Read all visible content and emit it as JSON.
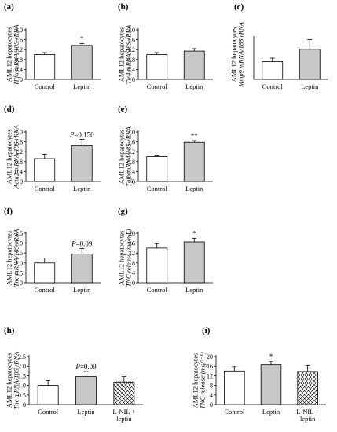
{
  "colors": {
    "control_fill": "#ffffff",
    "treated_fill": "#c8c8c8",
    "lnil_fill": "hatched",
    "stroke": "#000000"
  },
  "chart_data": [
    {
      "panel": "(a)",
      "type": "bar",
      "ylabel_line1": "AML12 hepatocytes",
      "ylabel_line2": "Hifα mRNA/18S rRNA",
      "categories": [
        "Control",
        "Leptin"
      ],
      "values": [
        1.0,
        1.37
      ],
      "errors": [
        0.08,
        0.08
      ],
      "yticks": [
        "0",
        "0.4",
        "0.8",
        "1.2",
        "1.6",
        "2.0"
      ],
      "ylim": [
        0,
        2.0
      ],
      "annotations": [
        "",
        "*"
      ]
    },
    {
      "panel": "(b)",
      "type": "bar",
      "ylabel_line1": "AML12 hepatocytes",
      "ylabel_line2": "Tlr4 mRNA/18S rRNA",
      "categories": [
        "Control",
        "Leptin"
      ],
      "values": [
        1.0,
        1.14
      ],
      "errors": [
        0.08,
        0.1
      ],
      "yticks": [
        "0",
        "0.4",
        "0.8",
        "1.2",
        "1.6",
        "2.0"
      ],
      "ylim": [
        0,
        2.0
      ],
      "annotations": [
        "",
        ""
      ]
    },
    {
      "panel": "(c)",
      "type": "bar",
      "ylabel_line1": "AML12 hepatocytes",
      "ylabel_line2": "Mmp9 mRNA/18S rRNA",
      "categories": [
        "Control",
        "Leptin"
      ],
      "values": [
        1.0,
        1.7
      ],
      "errors": [
        0.2,
        0.55
      ],
      "yticks": [],
      "ylim": [
        0,
        2.8
      ],
      "annotations": [
        "",
        ""
      ]
    },
    {
      "panel": "(d)",
      "type": "bar",
      "ylabel_line1": "AML12 hepatocytes",
      "ylabel_line2": "Acta2 mRNA/18S rRNA",
      "categories": [
        "Control",
        "Leptin"
      ],
      "values": [
        0.92,
        1.45
      ],
      "errors": [
        0.18,
        0.25
      ],
      "yticks": [
        "0",
        "0.4",
        "0.8",
        "1.2",
        "1.6",
        "2.0"
      ],
      "ylim": [
        0,
        2.0
      ],
      "annotations": [
        "",
        "P=0.150"
      ]
    },
    {
      "panel": "(e)",
      "type": "bar",
      "ylabel_line1": "AML12 hepatocytes",
      "ylabel_line2": "Tgfb mRNA/18S rRNA",
      "categories": [
        "Control",
        "Leptin"
      ],
      "values": [
        1.0,
        1.58
      ],
      "errors": [
        0.06,
        0.07
      ],
      "yticks": [
        "0",
        "0.4",
        "0.8",
        "1.2",
        "1.6",
        "2.0"
      ],
      "ylim": [
        0,
        2.0
      ],
      "annotations": [
        "",
        "**"
      ]
    },
    {
      "panel": "(f)",
      "type": "bar",
      "ylabel_line1": "AML12 hepatocytes",
      "ylabel_line2": "Tnc mRNA/18S rRNA",
      "categories": [
        "Control",
        "Leptin"
      ],
      "values": [
        1.0,
        1.45
      ],
      "errors": [
        0.25,
        0.27
      ],
      "yticks": [
        "0",
        "0.5",
        "1.0",
        "1.5",
        "2.0",
        "2.5"
      ],
      "ylim": [
        0,
        2.5
      ],
      "annotations": [
        "",
        "P=0.09"
      ]
    },
    {
      "panel": "(g)",
      "type": "bar",
      "ylabel_line1": "AML12 hepatocytes",
      "ylabel_line2": "TNC release (mg/mL)",
      "categories": [
        "Control",
        "Leptin"
      ],
      "values": [
        14,
        16.5
      ],
      "errors": [
        1.8,
        1.5
      ],
      "yticks": [
        "0",
        "4",
        "8",
        "12",
        "16",
        "20"
      ],
      "ylim": [
        0,
        20
      ],
      "annotations": [
        "",
        "*"
      ]
    },
    {
      "panel": "(h)",
      "type": "bar",
      "ylabel_line1": "AML12 hepatocytes",
      "ylabel_line2": "Tnc mRNA/18S rRNA",
      "categories": [
        "Control",
        "Leptin",
        "L-NIL +|leptin"
      ],
      "values": [
        1.0,
        1.45,
        1.18
      ],
      "errors": [
        0.25,
        0.27,
        0.27
      ],
      "yticks": [
        "0",
        "0.5",
        "1.0",
        "1.5",
        "2.0",
        "2.5"
      ],
      "ylim": [
        0,
        2.5
      ],
      "annotations": [
        "",
        "P=0.09",
        ""
      ]
    },
    {
      "panel": "(i)",
      "type": "bar",
      "ylabel_line1": "AML12 hepatocytes",
      "ylabel_line2": "TNC release (mg/¹⁻¹)",
      "categories": [
        "Control",
        "Leptin",
        "L-NIL +|leptin"
      ],
      "values": [
        14,
        16.5,
        13.8
      ],
      "errors": [
        1.8,
        1.5,
        2.5
      ],
      "yticks": [
        "0",
        "4",
        "8",
        "12",
        "16",
        "20"
      ],
      "ylim": [
        0,
        20
      ],
      "annotations": [
        "",
        "*",
        ""
      ]
    }
  ]
}
